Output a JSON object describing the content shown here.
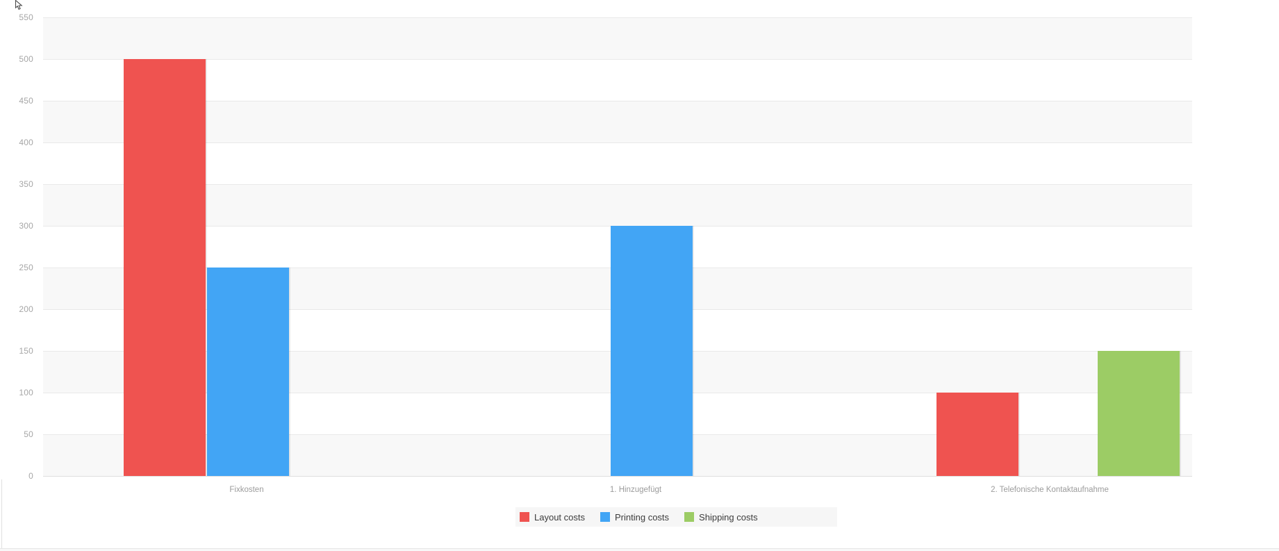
{
  "chart_data": {
    "type": "bar",
    "title": "",
    "xlabel": "",
    "ylabel": "",
    "categories": [
      "Fixkosten",
      "1. Hinzugefügt",
      "2. Telefonische Kontaktaufnahme"
    ],
    "series": [
      {
        "name": "Layout costs",
        "color": "#ef5350",
        "values": [
          500,
          null,
          100
        ]
      },
      {
        "name": "Printing costs",
        "color": "#42a5f5",
        "values": [
          250,
          300,
          null
        ]
      },
      {
        "name": "Shipping costs",
        "color": "#9ccc65",
        "values": [
          null,
          null,
          150
        ]
      }
    ],
    "y_ticks": [
      550,
      500,
      450,
      400,
      350,
      300,
      250,
      200,
      150,
      100,
      50,
      0
    ],
    "ylim": [
      0,
      550
    ],
    "tick_step": 50,
    "legend": {
      "position": "bottom",
      "entries": [
        "Layout costs",
        "Printing costs",
        "Shipping costs"
      ]
    },
    "grid": "horizontal-bands",
    "style_colors": {
      "band_gray": "#f8f8f8",
      "band_white": "#ffffff",
      "gridline": "#e9e9e9",
      "baseline": "#dedede",
      "axis_text": "#a6a6a6",
      "category_text": "#9c9c9c",
      "legend_text": "#3b3b3b",
      "legend_background": "#f6f6f6"
    }
  }
}
